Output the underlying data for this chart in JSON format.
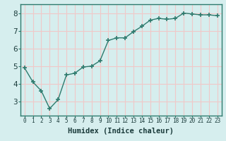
{
  "x": [
    0,
    1,
    2,
    3,
    4,
    5,
    6,
    7,
    8,
    9,
    10,
    11,
    12,
    13,
    14,
    15,
    16,
    17,
    18,
    19,
    20,
    21,
    22,
    23
  ],
  "y": [
    4.9,
    4.1,
    3.6,
    2.6,
    3.1,
    4.5,
    4.6,
    4.95,
    5.0,
    5.3,
    6.45,
    6.6,
    6.6,
    6.95,
    7.25,
    7.6,
    7.7,
    7.65,
    7.7,
    8.0,
    7.95,
    7.9,
    7.9,
    7.85
  ],
  "line_color": "#2e7b6e",
  "marker": "+",
  "marker_size": 4,
  "marker_edge_width": 1.2,
  "line_width": 1.0,
  "xlabel": "Humidex (Indice chaleur)",
  "xlim": [
    -0.5,
    23.5
  ],
  "ylim": [
    2.2,
    8.5
  ],
  "yticks": [
    3,
    4,
    5,
    6,
    7,
    8
  ],
  "xtick_labels": [
    "0",
    "1",
    "2",
    "3",
    "4",
    "5",
    "6",
    "7",
    "8",
    "9",
    "10",
    "11",
    "12",
    "13",
    "14",
    "15",
    "16",
    "17",
    "18",
    "19",
    "20",
    "21",
    "22",
    "23"
  ],
  "bg_color": "#d6eeee",
  "grid_color": "#f0c8c8",
  "spine_color": "#2e7b6e",
  "xlabel_fontsize": 7.5,
  "xlabel_fontweight": "bold",
  "xlabel_color": "#1a3a3a",
  "tick_fontsize": 5.5,
  "ytick_fontsize": 7.5
}
